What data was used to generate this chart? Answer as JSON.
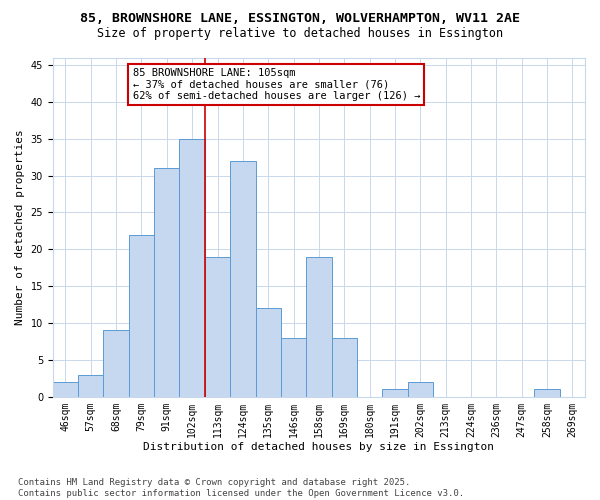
{
  "title_line1": "85, BROWNSHORE LANE, ESSINGTON, WOLVERHAMPTON, WV11 2AE",
  "title_line2": "Size of property relative to detached houses in Essington",
  "xlabel": "Distribution of detached houses by size in Essington",
  "ylabel": "Number of detached properties",
  "bar_labels": [
    "46sqm",
    "57sqm",
    "68sqm",
    "79sqm",
    "91sqm",
    "102sqm",
    "113sqm",
    "124sqm",
    "135sqm",
    "146sqm",
    "158sqm",
    "169sqm",
    "180sqm",
    "191sqm",
    "202sqm",
    "213sqm",
    "224sqm",
    "236sqm",
    "247sqm",
    "258sqm",
    "269sqm"
  ],
  "bar_values": [
    2,
    3,
    9,
    22,
    31,
    35,
    19,
    32,
    12,
    8,
    19,
    8,
    0,
    1,
    2,
    0,
    0,
    0,
    0,
    1,
    0
  ],
  "bar_color": "#c5d8f0",
  "bar_edge_color": "#5b9bd5",
  "vline_x": 5.5,
  "vline_color": "#cc0000",
  "annotation_text": "85 BROWNSHORE LANE: 105sqm\n← 37% of detached houses are smaller (76)\n62% of semi-detached houses are larger (126) →",
  "annotation_box_color": "#ffffff",
  "annotation_border_color": "#cc0000",
  "ylim": [
    0,
    46
  ],
  "yticks": [
    0,
    5,
    10,
    15,
    20,
    25,
    30,
    35,
    40,
    45
  ],
  "footnote": "Contains HM Land Registry data © Crown copyright and database right 2025.\nContains public sector information licensed under the Open Government Licence v3.0.",
  "bg_color": "#ffffff",
  "grid_color": "#c8d8ea",
  "title_fontsize": 9.5,
  "subtitle_fontsize": 8.5,
  "axis_label_fontsize": 8,
  "tick_fontsize": 7,
  "annotation_fontsize": 7.5,
  "footnote_fontsize": 6.5
}
